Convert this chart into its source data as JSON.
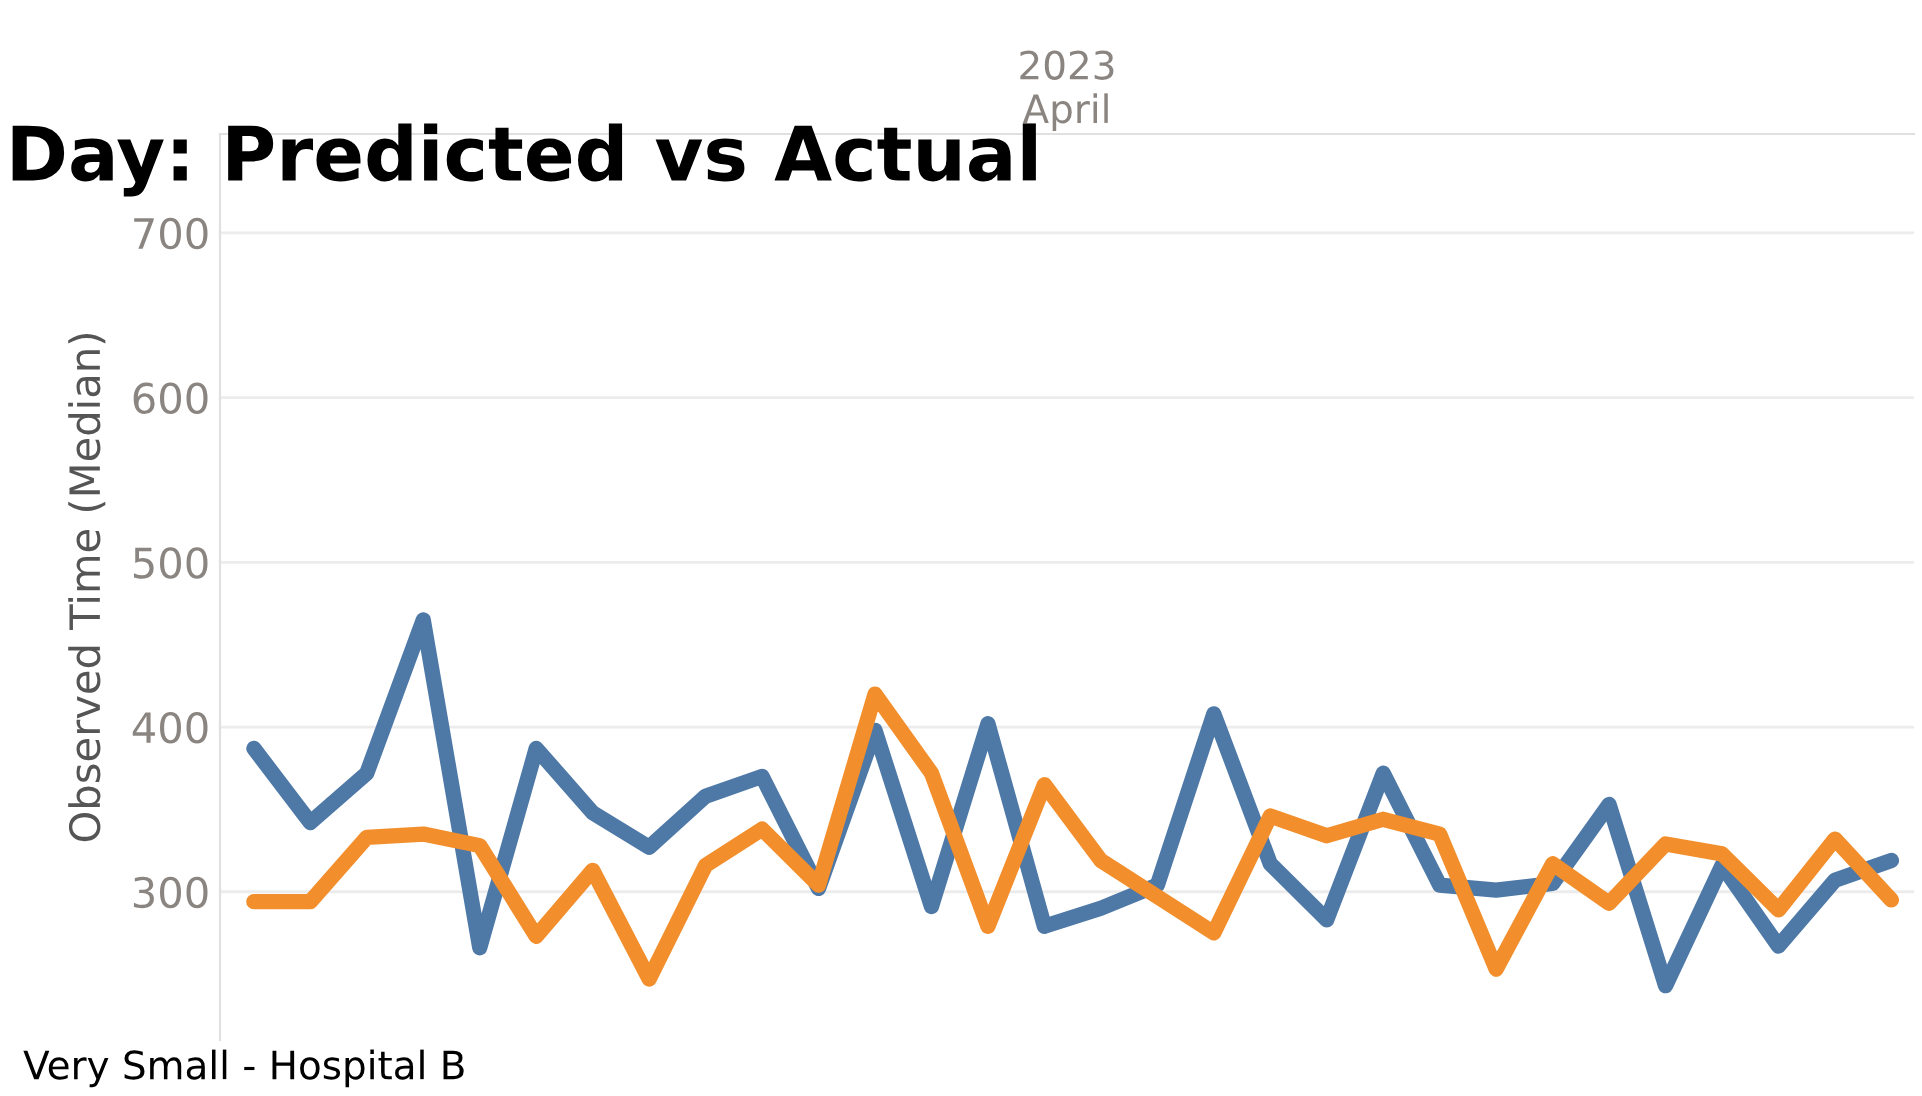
{
  "chart_data": {
    "type": "line",
    "title": "Day: Predicted vs Actual",
    "xlabel": "2023\nApril",
    "ylabel": "Observed Time (Median)",
    "categories": [
      null,
      null,
      null,
      null,
      null,
      null,
      null,
      null,
      null,
      null,
      null,
      null,
      null,
      null,
      null,
      null,
      null,
      null,
      null,
      null,
      null,
      null,
      null,
      null,
      null,
      null,
      null,
      null,
      null,
      null
    ],
    "series": [
      {
        "color": "#4e79a7",
        "values": [
          387,
          342,
          372,
          465,
          266,
          387,
          348,
          327,
          358,
          370,
          302,
          398,
          291,
          402,
          279,
          290,
          304,
          408,
          317,
          283,
          372,
          304,
          301,
          305,
          353,
          243,
          316,
          267,
          307,
          319
        ]
      },
      {
        "color": "#f28e2b",
        "values": [
          294,
          294,
          333,
          335,
          328,
          273,
          313,
          247,
          316,
          338,
          304,
          420,
          372,
          279,
          365,
          319,
          297,
          275,
          346,
          334,
          344,
          335,
          253,
          317,
          293,
          329,
          323,
          289,
          332,
          295
        ]
      }
    ],
    "ylim": [
      210,
      760
    ],
    "yticks": [
      300,
      400,
      500,
      600,
      700
    ],
    "grid": "y",
    "legend": false,
    "marker": "none",
    "line_style": "solid",
    "annotations": [
      "Very Small - Hospital B"
    ]
  }
}
